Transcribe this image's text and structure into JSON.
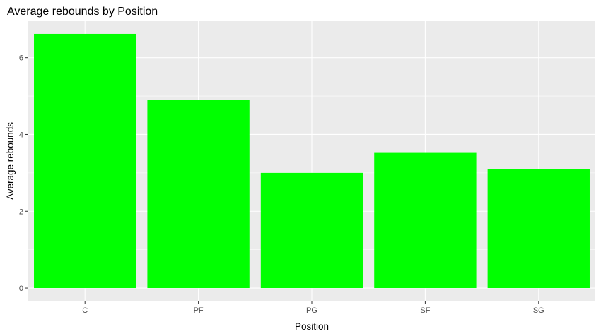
{
  "chart_data": {
    "type": "bar",
    "title": "Average rebounds by Position",
    "xlabel": "Position",
    "ylabel": "Average rebounds",
    "categories": [
      "C",
      "PF",
      "PG",
      "SF",
      "SG"
    ],
    "values": [
      6.62,
      4.9,
      3.0,
      3.52,
      3.1
    ],
    "ylim": [
      -0.33,
      6.95
    ],
    "yticks": [
      0,
      2,
      4,
      6
    ],
    "bar_color": "#00FF00",
    "panel_background": "#EBEBEB",
    "grid_color": "#FFFFFF",
    "grid": true,
    "legend": "none"
  }
}
